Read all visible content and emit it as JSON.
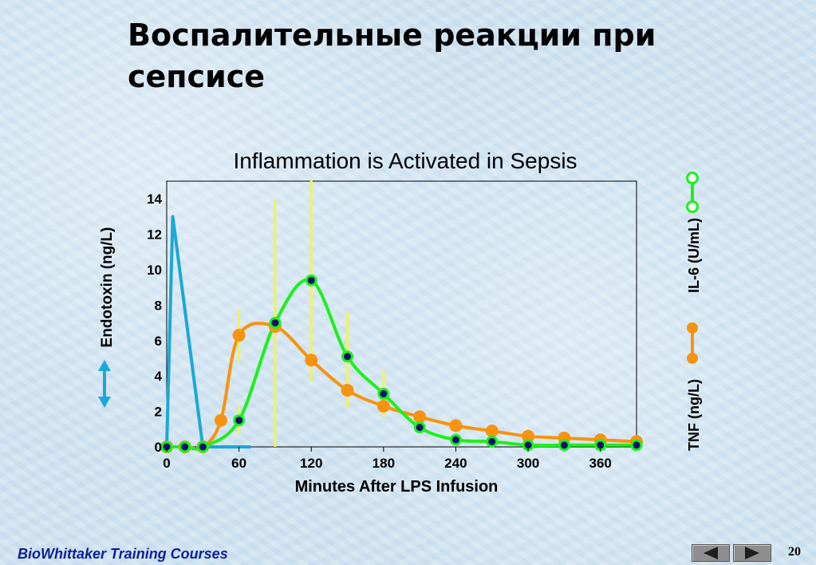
{
  "slide": {
    "title": "Воспалительные реакции при сепсисе",
    "footer": "BioWhittaker Training Courses",
    "page_number": "20"
  },
  "colors": {
    "endotoxin": "#1aa8d8",
    "tnf": "#f7930f",
    "il6": "#1cf01c",
    "error_bar": "#f2f25a",
    "marker_center": "#0d1270"
  },
  "chart_data": {
    "type": "line",
    "title": "Inflammation is Activated in Sepsis",
    "xlabel": "Minutes After LPS Infusion",
    "ylabel_left": "Endotoxin (ng/L)",
    "ylabel_right_top": "IL-6 (U/mL)",
    "ylabel_right_bottom": "TNF (ng/L)",
    "xlim": [
      0,
      390
    ],
    "ylim": [
      0,
      15
    ],
    "x_ticks": [
      0,
      60,
      120,
      180,
      240,
      300,
      360
    ],
    "y_ticks": [
      0,
      2,
      4,
      6,
      8,
      10,
      12,
      14
    ],
    "series": [
      {
        "name": "Endotoxin",
        "marker": "none",
        "x": [
          0,
          5,
          30,
          50,
          70
        ],
        "y": [
          0,
          13,
          0,
          0,
          0
        ]
      },
      {
        "name": "TNF",
        "marker": "circle",
        "x": [
          0,
          15,
          30,
          45,
          60,
          90,
          120,
          150,
          180,
          210,
          240,
          270,
          300,
          330,
          360,
          390
        ],
        "y": [
          0,
          0,
          0,
          1.5,
          6.3,
          6.8,
          4.9,
          3.2,
          2.3,
          1.7,
          1.2,
          0.9,
          0.6,
          0.5,
          0.4,
          0.3
        ],
        "error": [
          null,
          null,
          null,
          null,
          1.5,
          null,
          null,
          1.0,
          null,
          null,
          null,
          null,
          null,
          null,
          null,
          null
        ]
      },
      {
        "name": "IL-6",
        "marker": "filled-circle",
        "x": [
          0,
          15,
          30,
          60,
          90,
          120,
          150,
          180,
          210,
          240,
          270,
          300,
          330,
          360,
          390
        ],
        "y": [
          0,
          0,
          0,
          1.5,
          7.0,
          9.4,
          5.1,
          3.0,
          1.1,
          0.4,
          0.3,
          0.1,
          0.1,
          0.1,
          0.1
        ],
        "error": [
          null,
          null,
          null,
          0.8,
          7.0,
          5.7,
          2.5,
          1.3,
          null,
          null,
          null,
          null,
          null,
          null,
          null
        ]
      }
    ]
  }
}
